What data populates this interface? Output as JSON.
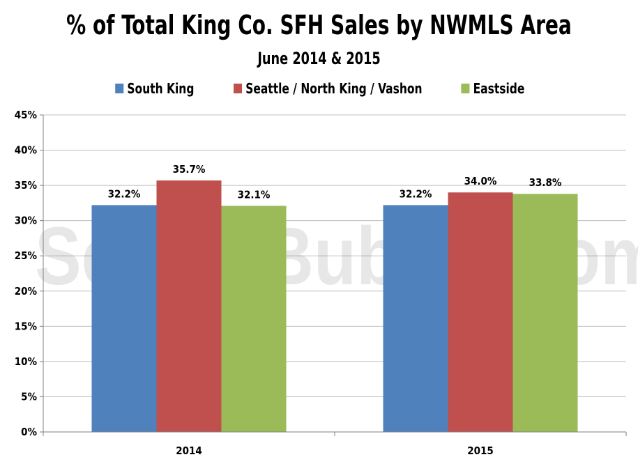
{
  "chart_data": {
    "type": "bar",
    "title": "% of Total King Co. SFH Sales by NWMLS Area",
    "subtitle": "June 2014 & 2015",
    "categories": [
      "2014",
      "2015"
    ],
    "series": [
      {
        "name": "South King",
        "values": [
          32.2,
          32.2
        ],
        "labels": [
          "32.2%",
          "32.2%"
        ],
        "color": "#4F81BD"
      },
      {
        "name": "Seattle / North King / Vashon",
        "values": [
          35.7,
          34.0
        ],
        "labels": [
          "35.7%",
          "34.0%"
        ],
        "color": "#C0504D"
      },
      {
        "name": "Eastside",
        "values": [
          32.1,
          33.8
        ],
        "labels": [
          "32.1%",
          "33.8%"
        ],
        "color": "#9BBB59"
      }
    ],
    "ylim": [
      0,
      45
    ],
    "yticks": [
      0,
      5,
      10,
      15,
      20,
      25,
      30,
      35,
      40,
      45
    ],
    "ytick_labels": [
      "0%",
      "5%",
      "10%",
      "15%",
      "20%",
      "25%",
      "30%",
      "35%",
      "40%",
      "45%"
    ],
    "xlabel": "",
    "ylabel": "",
    "grid": true,
    "legend_position": "top"
  },
  "watermark": "SeattleBubble.com"
}
